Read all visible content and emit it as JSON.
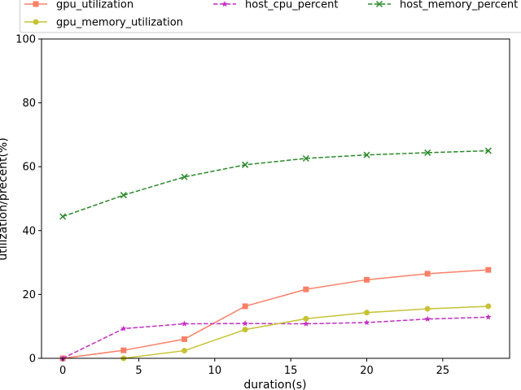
{
  "chart_data": {
    "type": "line",
    "title": "",
    "xlabel": "duration(s)",
    "ylabel": "utilization/precent(%)",
    "xlim": [
      -1.4,
      29.4
    ],
    "ylim": [
      0,
      100
    ],
    "xticks": [
      0,
      5,
      10,
      15,
      20,
      25
    ],
    "yticks": [
      0,
      20,
      40,
      60,
      80,
      100
    ],
    "grid": false,
    "legend_position": "top",
    "x": [
      0,
      4,
      8,
      12,
      16,
      20,
      24,
      28
    ],
    "series": [
      {
        "name": "gpu_utilization",
        "color": "#fa8068",
        "linestyle": "solid",
        "marker": "square",
        "values": [
          0,
          2.5,
          6,
          16.3,
          21.6,
          24.6,
          26.5,
          27.7
        ]
      },
      {
        "name": "host_cpu_percent",
        "color": "#c22fc2",
        "linestyle": "dashed",
        "marker": "star",
        "values": [
          0,
          9.3,
          10.8,
          10.9,
          10.8,
          11.2,
          12.3,
          12.9
        ]
      },
      {
        "name": "host_memory_percent",
        "color": "#2a8a2a",
        "linestyle": "dashed",
        "marker": "x",
        "values": [
          44.4,
          51.1,
          56.8,
          60.6,
          62.6,
          63.7,
          64.4,
          65.0
        ]
      },
      {
        "name": "gpu_memory_utilization",
        "color": "#c7c234",
        "linestyle": "solid",
        "marker": "circle",
        "values": [
          null,
          0,
          2.4,
          9.0,
          12.4,
          14.3,
          15.5,
          16.3
        ]
      }
    ]
  }
}
